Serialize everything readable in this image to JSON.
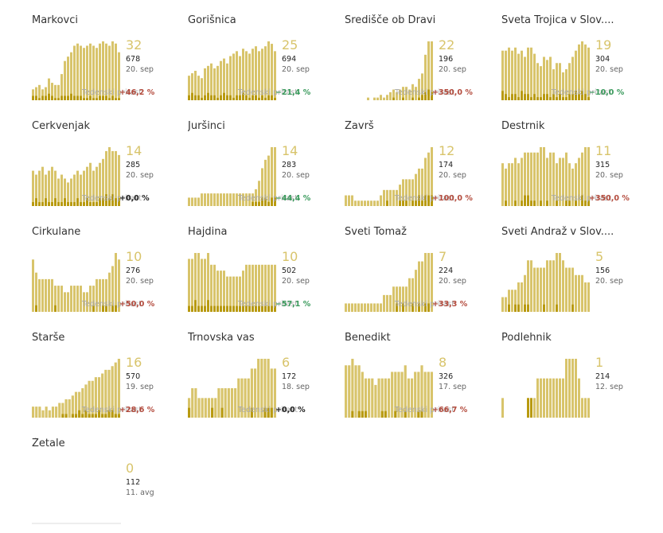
{
  "growth_label": "Tedenski prirast",
  "colors": {
    "bar": "#d8c46b",
    "bar_dark": "#b89a10",
    "up": "#b34a3c",
    "down": "#3a9a5c",
    "flat": "#222222"
  },
  "chart_data": [
    {
      "type": "bar",
      "name": "Markovci",
      "big": "32",
      "total": "678",
      "date": "20. sep",
      "growth": "+46,2 %",
      "trend": "up",
      "values": [
        5,
        6,
        7,
        5,
        6,
        10,
        8,
        7,
        7,
        12,
        18,
        20,
        22,
        25,
        26,
        25,
        24,
        25,
        26,
        25,
        24,
        26,
        27,
        26,
        25,
        27,
        26,
        22
      ],
      "dark": [
        2,
        2,
        1,
        2,
        2,
        3,
        2,
        1,
        1,
        2,
        2,
        2,
        3,
        2,
        2,
        2,
        1,
        1,
        2,
        1,
        1,
        2,
        2,
        2,
        1,
        2,
        1,
        1
      ]
    },
    {
      "type": "bar",
      "name": "Gorišnica",
      "big": "25",
      "total": "694",
      "date": "20. sep",
      "growth": "−21,4 %",
      "trend": "down",
      "values": [
        10,
        11,
        12,
        10,
        9,
        13,
        14,
        15,
        13,
        14,
        16,
        17,
        15,
        18,
        19,
        20,
        18,
        21,
        20,
        19,
        21,
        22,
        20,
        21,
        22,
        24,
        23,
        20
      ],
      "dark": [
        2,
        3,
        2,
        2,
        1,
        2,
        3,
        2,
        2,
        1,
        2,
        3,
        2,
        2,
        1,
        2,
        2,
        3,
        2,
        1,
        2,
        2,
        1,
        2,
        1,
        2,
        2,
        1
      ]
    },
    {
      "type": "bar",
      "name": "Središče ob Dravi",
      "big": "22",
      "total": "196",
      "date": "20. sep",
      "growth": "+350,0 %",
      "trend": "up",
      "values": [
        0,
        0,
        0,
        0,
        0,
        0,
        0,
        1,
        0,
        1,
        1,
        2,
        1,
        2,
        3,
        4,
        3,
        4,
        5,
        5,
        4,
        6,
        5,
        8,
        10,
        17,
        22,
        22
      ],
      "dark": [
        0,
        0,
        0,
        0,
        0,
        0,
        0,
        0,
        0,
        0,
        0,
        0,
        0,
        0,
        0,
        1,
        0,
        0,
        1,
        0,
        0,
        1,
        0,
        1,
        2,
        3,
        4,
        3
      ]
    },
    {
      "type": "bar",
      "name": "Sveta Trojica v Slov....",
      "big": "19",
      "total": "304",
      "date": "20. sep",
      "growth": "−10,0 %",
      "trend": "down",
      "values": [
        16,
        16,
        17,
        16,
        17,
        15,
        16,
        14,
        17,
        17,
        15,
        12,
        11,
        14,
        13,
        14,
        10,
        12,
        12,
        9,
        10,
        12,
        14,
        16,
        18,
        19,
        18,
        17
      ],
      "dark": [
        3,
        2,
        1,
        2,
        2,
        1,
        3,
        2,
        2,
        1,
        2,
        1,
        1,
        2,
        2,
        1,
        2,
        1,
        2,
        1,
        1,
        2,
        2,
        3,
        2,
        3,
        2,
        1
      ]
    },
    {
      "type": "bar",
      "name": "Cerkvenjak",
      "big": "14",
      "total": "285",
      "date": "20. sep",
      "growth": "+0,0 %",
      "trend": "flat",
      "values": [
        9,
        8,
        9,
        10,
        8,
        9,
        10,
        9,
        7,
        8,
        7,
        6,
        7,
        8,
        9,
        8,
        9,
        10,
        11,
        9,
        10,
        11,
        12,
        14,
        15,
        14,
        14,
        13
      ],
      "dark": [
        1,
        2,
        1,
        1,
        2,
        1,
        1,
        2,
        1,
        1,
        2,
        1,
        1,
        1,
        2,
        1,
        1,
        2,
        1,
        1,
        1,
        2,
        2,
        3,
        2,
        3,
        2,
        2
      ]
    },
    {
      "type": "bar",
      "name": "Juršinci",
      "big": "14",
      "total": "283",
      "date": "20. sep",
      "growth": "−44,4 %",
      "trend": "down",
      "values": [
        2,
        2,
        2,
        2,
        3,
        3,
        3,
        3,
        3,
        3,
        3,
        3,
        3,
        3,
        3,
        3,
        3,
        3,
        3,
        3,
        3,
        4,
        6,
        9,
        11,
        12,
        14,
        14
      ],
      "dark": [
        0,
        0,
        0,
        0,
        0,
        0,
        0,
        0,
        0,
        0,
        0,
        0,
        0,
        0,
        0,
        0,
        0,
        0,
        0,
        0,
        1,
        1,
        1,
        2,
        2,
        1,
        2,
        2
      ]
    },
    {
      "type": "bar",
      "name": "Završ",
      "big": "12",
      "total": "174",
      "date": "20. sep",
      "growth": "+100,0 %",
      "trend": "up",
      "values": [
        2,
        2,
        2,
        1,
        1,
        1,
        1,
        1,
        1,
        1,
        1,
        2,
        3,
        3,
        3,
        3,
        3,
        4,
        5,
        5,
        5,
        5,
        6,
        7,
        7,
        9,
        10,
        11
      ],
      "dark": [
        0,
        0,
        0,
        0,
        0,
        0,
        0,
        0,
        0,
        0,
        0,
        0,
        0,
        1,
        0,
        0,
        0,
        1,
        1,
        1,
        0,
        1,
        1,
        2,
        1,
        2,
        2,
        2
      ]
    },
    {
      "type": "bar",
      "name": "Destrnik",
      "big": "11",
      "total": "315",
      "date": "20. sep",
      "growth": "+350,0 %",
      "trend": "up",
      "values": [
        8,
        7,
        8,
        8,
        9,
        8,
        9,
        10,
        10,
        10,
        10,
        10,
        11,
        11,
        9,
        10,
        10,
        8,
        9,
        9,
        10,
        8,
        7,
        8,
        9,
        10,
        11,
        11
      ],
      "dark": [
        0,
        1,
        0,
        0,
        1,
        0,
        1,
        2,
        2,
        1,
        1,
        0,
        1,
        0,
        1,
        0,
        0,
        1,
        0,
        0,
        1,
        1,
        0,
        1,
        0,
        2,
        1,
        1
      ]
    },
    {
      "type": "bar",
      "name": "Cirkulane",
      "big": "10",
      "total": "276",
      "date": "20. sep",
      "growth": "+50,0 %",
      "trend": "up",
      "values": [
        8,
        6,
        5,
        5,
        5,
        5,
        5,
        4,
        4,
        4,
        3,
        3,
        4,
        4,
        4,
        4,
        3,
        3,
        4,
        4,
        5,
        5,
        5,
        5,
        6,
        7,
        9,
        8
      ],
      "dark": [
        0,
        1,
        0,
        0,
        0,
        0,
        0,
        1,
        0,
        0,
        0,
        0,
        0,
        0,
        0,
        0,
        0,
        0,
        0,
        1,
        0,
        0,
        1,
        1,
        0,
        1,
        1,
        0
      ]
    },
    {
      "type": "bar",
      "name": "Hajdina",
      "big": "10",
      "total": "502",
      "date": "20. sep",
      "growth": "−57,1 %",
      "trend": "down",
      "values": [
        9,
        9,
        10,
        10,
        9,
        9,
        10,
        8,
        8,
        7,
        7,
        7,
        6,
        6,
        6,
        6,
        6,
        7,
        8,
        8,
        8,
        8,
        8,
        8,
        8,
        8,
        8,
        8
      ],
      "dark": [
        1,
        1,
        2,
        1,
        1,
        1,
        2,
        1,
        1,
        1,
        1,
        1,
        1,
        1,
        1,
        1,
        1,
        1,
        1,
        1,
        1,
        1,
        1,
        1,
        1,
        1,
        1,
        1
      ]
    },
    {
      "type": "bar",
      "name": "Sveti Tomaž",
      "big": "7",
      "total": "224",
      "date": "20. sep",
      "growth": "+33,3 %",
      "trend": "up",
      "values": [
        1,
        1,
        1,
        1,
        1,
        1,
        1,
        1,
        1,
        1,
        1,
        1,
        2,
        2,
        2,
        3,
        3,
        3,
        3,
        3,
        4,
        4,
        5,
        6,
        6,
        7,
        7,
        7
      ],
      "dark": [
        0,
        0,
        0,
        0,
        0,
        0,
        0,
        0,
        0,
        0,
        0,
        0,
        0,
        0,
        0,
        0,
        1,
        0,
        1,
        0,
        0,
        1,
        0,
        1,
        0,
        1,
        1,
        0
      ]
    },
    {
      "type": "bar",
      "name": "Sveti Andraž v Slov....",
      "big": "5",
      "total": "156",
      "date": "20. sep",
      "growth": "",
      "trend": "flat",
      "values": [
        2,
        2,
        3,
        3,
        3,
        4,
        4,
        5,
        7,
        7,
        6,
        6,
        6,
        6,
        7,
        7,
        7,
        8,
        8,
        7,
        6,
        6,
        6,
        5,
        5,
        5,
        4,
        4
      ],
      "dark": [
        0,
        0,
        1,
        0,
        1,
        1,
        0,
        1,
        1,
        0,
        0,
        0,
        0,
        1,
        0,
        0,
        0,
        1,
        0,
        0,
        0,
        0,
        1,
        0,
        0,
        0,
        0,
        0
      ]
    },
    {
      "type": "bar",
      "name": "Starše",
      "big": "16",
      "total": "570",
      "date": "19. sep",
      "growth": "+28,6 %",
      "trend": "up",
      "values": [
        3,
        3,
        3,
        2,
        3,
        2,
        3,
        3,
        4,
        4,
        5,
        5,
        6,
        7,
        7,
        8,
        9,
        10,
        10,
        11,
        11,
        12,
        13,
        13,
        14,
        15,
        16
      ],
      "dark": [
        0,
        0,
        0,
        0,
        0,
        0,
        0,
        0,
        0,
        1,
        1,
        0,
        1,
        1,
        2,
        1,
        2,
        1,
        1,
        1,
        2,
        1,
        1,
        2,
        2,
        1,
        1
      ]
    },
    {
      "type": "bar",
      "name": "Trnovska vas",
      "big": "6",
      "total": "172",
      "date": "18. sep",
      "growth": "+0,0 %",
      "trend": "flat",
      "values": [
        2,
        3,
        3,
        2,
        2,
        2,
        2,
        2,
        2,
        3,
        3,
        3,
        3,
        3,
        3,
        4,
        4,
        4,
        4,
        5,
        5,
        6,
        6,
        6,
        6,
        5,
        5
      ],
      "dark": [
        1,
        0,
        0,
        0,
        0,
        0,
        0,
        1,
        0,
        0,
        1,
        0,
        0,
        0,
        0,
        0,
        0,
        0,
        0,
        1,
        0,
        0,
        0,
        1,
        1,
        1,
        0
      ]
    },
    {
      "type": "bar",
      "name": "Benedikt",
      "big": "8",
      "total": "326",
      "date": "17. sep",
      "growth": "+66,7 %",
      "trend": "up",
      "values": [
        8,
        8,
        9,
        8,
        8,
        7,
        6,
        6,
        6,
        5,
        6,
        6,
        6,
        6,
        7,
        7,
        7,
        7,
        8,
        6,
        6,
        7,
        7,
        8,
        7,
        7,
        7
      ],
      "dark": [
        0,
        0,
        1,
        0,
        1,
        1,
        1,
        0,
        0,
        0,
        0,
        1,
        1,
        0,
        0,
        1,
        0,
        0,
        1,
        0,
        0,
        0,
        1,
        1,
        0,
        0,
        0
      ]
    },
    {
      "type": "bar",
      "name": "Podlehnik",
      "big": "1",
      "total": "214",
      "date": "12. sep",
      "growth": "",
      "trend": "flat",
      "values": [
        1,
        0,
        0,
        0,
        0,
        0,
        0,
        0,
        1,
        1,
        1,
        2,
        2,
        2,
        2,
        2,
        2,
        2,
        2,
        2,
        3,
        3,
        3,
        3,
        2,
        1,
        1,
        1
      ],
      "dark": [
        0,
        0,
        0,
        0,
        0,
        0,
        0,
        0,
        1,
        1,
        0,
        0,
        0,
        0,
        0,
        0,
        0,
        0,
        0,
        0,
        0,
        0,
        0,
        0,
        0,
        0,
        0,
        0
      ]
    },
    {
      "type": "bar",
      "name": "Žetale",
      "big": "0",
      "total": "112",
      "date": "11. avg",
      "growth": "",
      "trend": "flat",
      "values": [],
      "dark": []
    }
  ]
}
